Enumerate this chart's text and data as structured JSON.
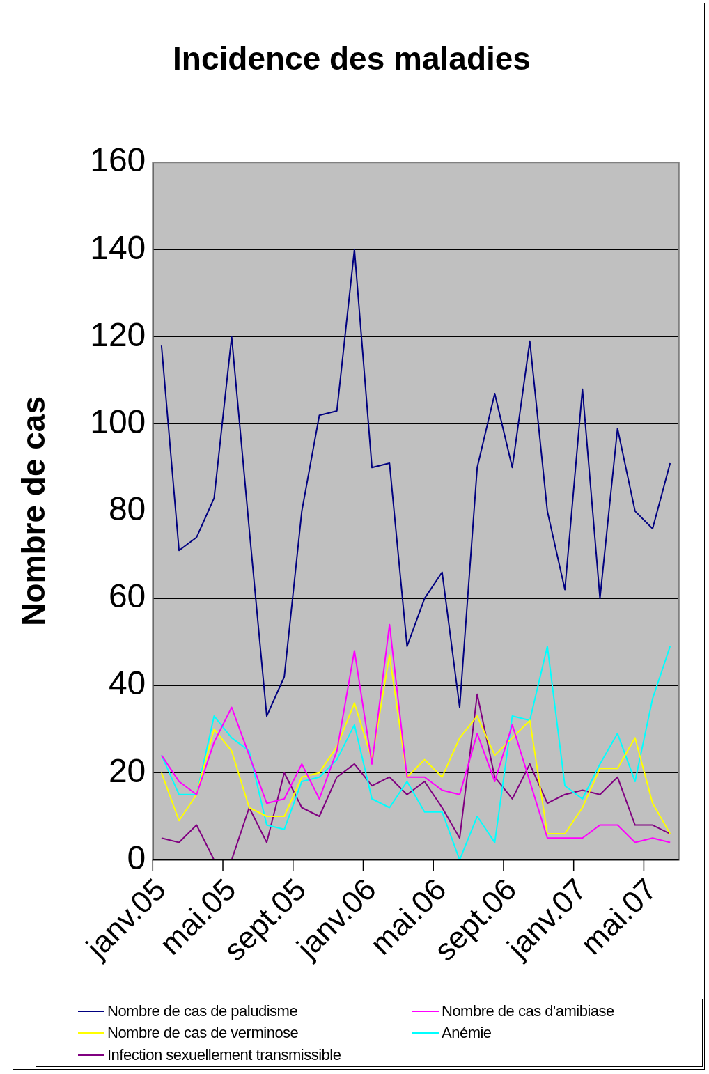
{
  "chart_data": {
    "type": "line",
    "title": "Incidence des maladies",
    "ylabel": "Nombre de cas",
    "categories": [
      "janv.05",
      null,
      null,
      null,
      "mai.05",
      null,
      null,
      null,
      "sept.05",
      null,
      null,
      null,
      "janv.06",
      null,
      null,
      null,
      "mai.06",
      null,
      null,
      null,
      "sept.06",
      null,
      null,
      null,
      "janv.07",
      null,
      null,
      null,
      "mai.07",
      null
    ],
    "ylim": [
      0,
      160
    ],
    "yticks": [
      0,
      20,
      40,
      60,
      80,
      100,
      120,
      140,
      160
    ],
    "grid": "y",
    "legend": "bottom",
    "marker": "none",
    "series": [
      {
        "name": "Nombre de cas de paludisme",
        "color": "#000080",
        "values": [
          118,
          71,
          74,
          83,
          120,
          76,
          33,
          42,
          80,
          102,
          103,
          140,
          90,
          91,
          49,
          60,
          66,
          35,
          90,
          107,
          90,
          119,
          80,
          62,
          108,
          60,
          99,
          80,
          76,
          91
        ]
      },
      {
        "name": "Nombre de cas d'amibiase",
        "color": "#ff00ff",
        "values": [
          24,
          18,
          15,
          27,
          35,
          24,
          13,
          14,
          22,
          14,
          25,
          48,
          22,
          54,
          19,
          19,
          16,
          15,
          29,
          18,
          31,
          18,
          5,
          5,
          5,
          8,
          8,
          4,
          5,
          4
        ]
      },
      {
        "name": "Nombre de cas de verminose",
        "color": "#ffff00",
        "values": [
          20,
          9,
          15,
          30,
          25,
          12,
          10,
          10,
          19,
          20,
          26,
          36,
          23,
          47,
          19,
          23,
          19,
          28,
          33,
          24,
          28,
          32,
          6,
          6,
          12,
          21,
          21,
          28,
          13,
          6
        ]
      },
      {
        "name": "Anémie",
        "color": "#00ffff",
        "values": [
          24,
          15,
          15,
          33,
          28,
          25,
          8,
          7,
          18,
          19,
          23,
          31,
          14,
          12,
          18,
          11,
          11,
          0,
          10,
          4,
          33,
          32,
          49,
          17,
          14,
          22,
          29,
          18,
          37,
          49
        ]
      },
      {
        "name": "Infection sexuellement transmissible",
        "color": "#800080",
        "values": [
          5,
          4,
          8,
          0,
          0,
          12,
          4,
          20,
          12,
          10,
          19,
          22,
          17,
          19,
          15,
          18,
          12,
          5,
          38,
          19,
          14,
          22,
          13,
          15,
          16,
          15,
          19,
          8,
          8,
          6
        ]
      }
    ]
  }
}
